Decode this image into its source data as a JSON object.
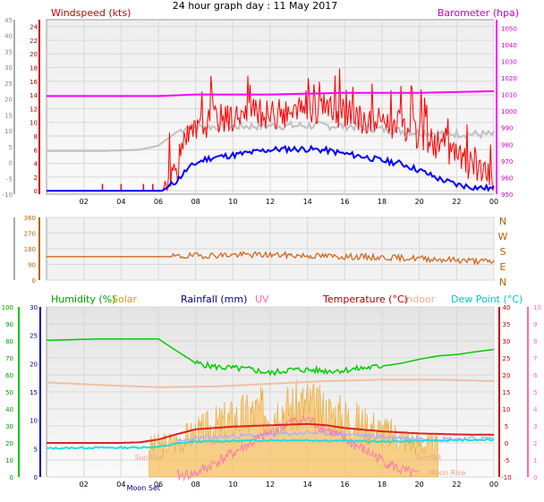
{
  "title": "24 hour graph day : 11 May 2017",
  "chart_data": [
    {
      "type": "line",
      "panel": "wind-baro",
      "left_label": "Windspeed (kts)",
      "right_label": "Barometer (hpa)",
      "x_ticks": [
        "02",
        "04",
        "06",
        "08",
        "10",
        "12",
        "14",
        "16",
        "18",
        "20",
        "22",
        "00"
      ],
      "y_left_outer_ticks": [
        -10,
        -5,
        0,
        5,
        10,
        15,
        20,
        25,
        30,
        35,
        40,
        45
      ],
      "y_left_inner_ticks": [
        0,
        2,
        4,
        6,
        8,
        10,
        12,
        14,
        16,
        18,
        20,
        22,
        24
      ],
      "y_right_ticks": [
        950,
        960,
        970,
        980,
        990,
        1000,
        1010,
        1020,
        1030,
        1040,
        1050
      ],
      "ylim_inner": [
        -0.5,
        25
      ],
      "ylim_baro": [
        950,
        1055
      ],
      "grid": true,
      "series": [
        {
          "key": "barometer",
          "color": "#ff00ff",
          "points": [
            [
              0,
              1009
            ],
            [
              6,
              1009
            ],
            [
              8,
              1010
            ],
            [
              12,
              1010
            ],
            [
              16,
              1011
            ],
            [
              20,
              1011
            ],
            [
              24,
              1012
            ]
          ]
        },
        {
          "key": "grey",
          "color": "#c0c0c0",
          "points": [
            [
              0,
              5.8
            ],
            [
              3,
              5.8
            ],
            [
              5,
              6.0
            ],
            [
              6,
              6.6
            ],
            [
              6.5,
              7.6
            ],
            [
              7,
              8.6
            ],
            [
              7.5,
              9.3
            ],
            [
              12,
              9.5
            ],
            [
              16,
              9.5
            ],
            [
              20,
              8.5
            ],
            [
              24,
              8.2
            ]
          ]
        },
        {
          "key": "gust",
          "color": "#ff0000",
          "points": [
            [
              0,
              0
            ],
            [
              6.2,
              0
            ],
            [
              6.5,
              1.2
            ],
            [
              7,
              3.5
            ],
            [
              7.5,
              7.0
            ],
            [
              8,
              8.5
            ],
            [
              8.5,
              9.5
            ],
            [
              9,
              10.5
            ],
            [
              10,
              10.5
            ],
            [
              11,
              11
            ],
            [
              12,
              11
            ],
            [
              13,
              11
            ],
            [
              14,
              11.5
            ],
            [
              15,
              11.5
            ],
            [
              16,
              11
            ],
            [
              17,
              10
            ],
            [
              18,
              10
            ],
            [
              19,
              9
            ],
            [
              20,
              8
            ],
            [
              21,
              6.5
            ],
            [
              22,
              5.0
            ],
            [
              23,
              3.0
            ],
            [
              24,
              1.0
            ]
          ]
        },
        {
          "key": "average",
          "color": "#0000ff",
          "points": [
            [
              0,
              0
            ],
            [
              6.2,
              0
            ],
            [
              6.5,
              0.5
            ],
            [
              7,
              1.5
            ],
            [
              7.5,
              3.0
            ],
            [
              8,
              4.0
            ],
            [
              8.5,
              4.6
            ],
            [
              9,
              4.9
            ],
            [
              10,
              5.2
            ],
            [
              11,
              5.6
            ],
            [
              12,
              6.0
            ],
            [
              13,
              6.1
            ],
            [
              14,
              6.1
            ],
            [
              15,
              5.9
            ],
            [
              16,
              5.4
            ],
            [
              17,
              5.0
            ],
            [
              18,
              4.4
            ],
            [
              19,
              4.0
            ],
            [
              20,
              3.0
            ],
            [
              21,
              1.8
            ],
            [
              22,
              0.9
            ],
            [
              23,
              0.5
            ],
            [
              24,
              0.3
            ]
          ]
        }
      ]
    },
    {
      "type": "line",
      "panel": "wind-direction",
      "y_left_ticks": [
        0,
        90,
        180,
        270,
        360
      ],
      "y_right_labels": [
        "N",
        "W",
        "S",
        "E",
        "N"
      ],
      "ylim": [
        0,
        360
      ],
      "series": [
        {
          "key": "direction",
          "color": "#d2691e",
          "points": [
            [
              0,
              135
            ],
            [
              7,
              135
            ],
            [
              8,
              140
            ],
            [
              10,
              145
            ],
            [
              12,
              145
            ],
            [
              14,
              140
            ],
            [
              16,
              135
            ],
            [
              18,
              130
            ],
            [
              20,
              125
            ],
            [
              22,
              115
            ],
            [
              24,
              105
            ]
          ]
        }
      ]
    },
    {
      "type": "line",
      "panel": "temp-humidity",
      "legend": [
        "Humidity (%)",
        "Solar",
        "Rainfall (mm)",
        "UV",
        "Temperature (°C)",
        "Indoor",
        "Dew Point (°C)"
      ],
      "legend_colors": [
        "#00a000",
        "#c8a000",
        "#00008b",
        "#ff69b4",
        "#b00000",
        "#f0b090",
        "#00c8c8"
      ],
      "y_humidity_ticks": [
        0,
        10,
        20,
        30,
        40,
        50,
        60,
        70,
        80,
        90,
        100
      ],
      "y_rain_ticks": [
        0,
        5,
        10,
        15,
        20,
        25,
        30
      ],
      "y_temp_ticks": [
        -10,
        -5,
        0,
        5,
        10,
        15,
        20,
        25,
        30,
        35,
        40
      ],
      "y_uv_ticks": [
        0,
        1,
        2,
        3,
        4,
        5,
        6,
        7,
        8,
        9,
        10
      ],
      "ylim_temp": [
        -10,
        40
      ],
      "annotations": [
        "SunRise",
        "SunSet",
        "Moon Set",
        "Moon Rise"
      ],
      "x_ticks": [
        "02",
        "04",
        "06",
        "08",
        "10",
        "12",
        "14",
        "16",
        "18",
        "20",
        "22",
        "00"
      ],
      "series": [
        {
          "key": "indoor",
          "color": "#f0c0a0",
          "points": [
            [
              0,
              17.8
            ],
            [
              3,
              17.0
            ],
            [
              6,
              16.4
            ],
            [
              9,
              16.6
            ],
            [
              12,
              17.4
            ],
            [
              15,
              18.2
            ],
            [
              18,
              18.6
            ],
            [
              21,
              18.6
            ],
            [
              24,
              18.2
            ]
          ]
        },
        {
          "key": "humidity_as_temp",
          "color": "#00cc00",
          "points": [
            [
              0,
              30.2
            ],
            [
              3,
              30.6
            ],
            [
              6,
              30.6
            ],
            [
              7,
              27.0
            ],
            [
              8,
              23.5
            ],
            [
              9,
              22.4
            ],
            [
              10,
              22.0
            ],
            [
              11,
              21.6
            ],
            [
              12,
              20.5
            ],
            [
              13,
              21.5
            ],
            [
              14,
              21.5
            ],
            [
              15,
              21.2
            ],
            [
              16,
              21.4
            ],
            [
              17,
              22.0
            ],
            [
              18,
              22.6
            ],
            [
              19,
              23.4
            ],
            [
              20,
              24.6
            ],
            [
              21,
              25.6
            ],
            [
              22,
              26.0
            ],
            [
              23,
              26.8
            ],
            [
              24,
              27.5
            ]
          ]
        },
        {
          "key": "temperature",
          "color": "#dd2222",
          "points": [
            [
              0,
              0
            ],
            [
              2,
              0
            ],
            [
              4,
              0
            ],
            [
              5,
              0.2
            ],
            [
              6,
              1.0
            ],
            [
              7,
              2.6
            ],
            [
              8,
              4.0
            ],
            [
              9,
              4.4
            ],
            [
              10,
              4.8
            ],
            [
              12,
              5.2
            ],
            [
              14,
              5.6
            ],
            [
              15,
              5.2
            ],
            [
              16,
              4.4
            ],
            [
              18,
              3.4
            ],
            [
              20,
              2.8
            ],
            [
              22,
              2.5
            ],
            [
              24,
              2.4
            ]
          ]
        },
        {
          "key": "dewpoint",
          "color": "#22dddd",
          "points": [
            [
              0,
              -1.6
            ],
            [
              2,
              -1.4
            ],
            [
              4,
              -1.4
            ],
            [
              6,
              -1.2
            ],
            [
              7,
              -0.2
            ],
            [
              8,
              0.4
            ],
            [
              10,
              0.6
            ],
            [
              12,
              0.8
            ],
            [
              14,
              0.8
            ],
            [
              16,
              0.6
            ],
            [
              18,
              0.4
            ],
            [
              20,
              0.6
            ],
            [
              22,
              0.8
            ],
            [
              24,
              0.9
            ]
          ]
        },
        {
          "key": "rainfall_as_temp",
          "color": "#b0b0ff",
          "points": [
            [
              7,
              0.2
            ],
            [
              8,
              1.4
            ],
            [
              10,
              2.0
            ],
            [
              12,
              2.4
            ],
            [
              14,
              3.0
            ],
            [
              16,
              2.6
            ],
            [
              18,
              1.8
            ],
            [
              20,
              1.2
            ],
            [
              22,
              1.2
            ],
            [
              24,
              1.4
            ]
          ]
        },
        {
          "key": "uv",
          "color": "#ff69b4",
          "points": [
            [
              7,
              -9.8
            ],
            [
              8,
              -9.0
            ],
            [
              9,
              -6.0
            ],
            [
              10,
              -3.0
            ],
            [
              11,
              0
            ],
            [
              12,
              3.0
            ],
            [
              13,
              6.0
            ],
            [
              14,
              7.0
            ],
            [
              15,
              4.0
            ],
            [
              16,
              1.0
            ],
            [
              17,
              -2.0
            ],
            [
              18,
              -5.0
            ],
            [
              19,
              -8.0
            ],
            [
              20,
              -9.8
            ]
          ]
        },
        {
          "key": "solar",
          "color": "#f5c060",
          "points": [
            [
              5.5,
              0
            ],
            [
              6.5,
              1.0
            ],
            [
              7.5,
              3.0
            ],
            [
              8.5,
              5.5
            ],
            [
              9.5,
              8.0
            ],
            [
              10.5,
              10.0
            ],
            [
              11.5,
              11.5
            ],
            [
              12.5,
              12.5
            ],
            [
              13.5,
              13.0
            ],
            [
              14,
              14.0
            ],
            [
              14.5,
              12.0
            ],
            [
              15.5,
              10.5
            ],
            [
              16.5,
              8.5
            ],
            [
              17.5,
              6.5
            ],
            [
              18.5,
              4.0
            ],
            [
              19.5,
              2.0
            ],
            [
              20.5,
              0.5
            ],
            [
              21,
              0
            ]
          ]
        }
      ]
    }
  ]
}
